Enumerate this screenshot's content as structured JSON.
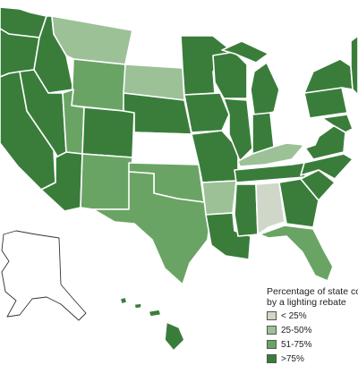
{
  "colors": {
    "lt25": "#cfd8c8",
    "p25_50": "#9cc197",
    "p51_75": "#6aa465",
    "gt75": "#3a7d3b",
    "none": "#ffffff",
    "border": "#ffffff",
    "outline": "#333333"
  },
  "legend": {
    "title_line1": "Percentage of state coverage",
    "title_line2": "by a lighting rebate",
    "items": [
      {
        "label": "< 25%",
        "color_key": "lt25"
      },
      {
        "label": "25-50%",
        "color_key": "p25_50"
      },
      {
        "label": "51-75%",
        "color_key": "p51_75"
      },
      {
        "label": ">75%",
        "color_key": "gt75"
      }
    ]
  },
  "states": [
    {
      "id": "WA",
      "category": "gt75"
    },
    {
      "id": "OR",
      "category": "gt75"
    },
    {
      "id": "CA",
      "category": "gt75"
    },
    {
      "id": "ID",
      "category": "gt75"
    },
    {
      "id": "NV",
      "category": "gt75"
    },
    {
      "id": "MT",
      "category": "p25_50"
    },
    {
      "id": "WY",
      "category": "p51_75"
    },
    {
      "id": "UT",
      "category": "p51_75"
    },
    {
      "id": "AZ",
      "category": "gt75"
    },
    {
      "id": "CO",
      "category": "gt75"
    },
    {
      "id": "NM",
      "category": "p51_75"
    },
    {
      "id": "ND",
      "category": "none"
    },
    {
      "id": "SD",
      "category": "p25_50"
    },
    {
      "id": "NE",
      "category": "gt75"
    },
    {
      "id": "KS",
      "category": "none"
    },
    {
      "id": "OK",
      "category": "p51_75"
    },
    {
      "id": "TX",
      "category": "p51_75"
    },
    {
      "id": "MN",
      "category": "gt75"
    },
    {
      "id": "IA",
      "category": "gt75"
    },
    {
      "id": "MO",
      "category": "gt75"
    },
    {
      "id": "AR",
      "category": "p25_50"
    },
    {
      "id": "LA",
      "category": "gt75"
    },
    {
      "id": "WI",
      "category": "gt75"
    },
    {
      "id": "IL",
      "category": "gt75"
    },
    {
      "id": "MI",
      "category": "gt75"
    },
    {
      "id": "IN",
      "category": "gt75"
    },
    {
      "id": "OH",
      "category": "none"
    },
    {
      "id": "KY",
      "category": "p25_50"
    },
    {
      "id": "TN",
      "category": "gt75"
    },
    {
      "id": "MS",
      "category": "gt75"
    },
    {
      "id": "AL",
      "category": "lt25"
    },
    {
      "id": "GA",
      "category": "gt75"
    },
    {
      "id": "FL",
      "category": "p51_75"
    },
    {
      "id": "SC",
      "category": "gt75"
    },
    {
      "id": "NC",
      "category": "gt75"
    },
    {
      "id": "VA",
      "category": "gt75"
    },
    {
      "id": "WV",
      "category": "none"
    },
    {
      "id": "PA",
      "category": "gt75"
    },
    {
      "id": "NY",
      "category": "gt75"
    },
    {
      "id": "MD",
      "category": "gt75"
    },
    {
      "id": "NE_STATES",
      "category": "gt75"
    },
    {
      "id": "AK",
      "category": "none"
    },
    {
      "id": "HI",
      "category": "gt75"
    }
  ]
}
